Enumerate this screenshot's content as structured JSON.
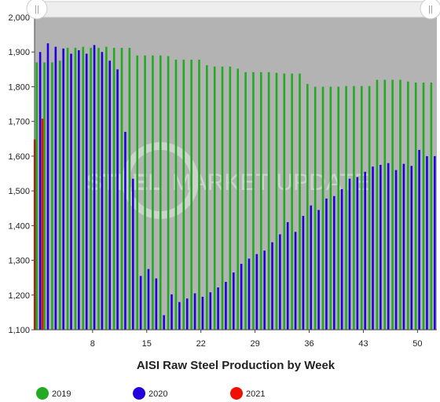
{
  "colors": {
    "plot_bg": "#b3b3b3",
    "y2019": "#22aa22",
    "y2020": "#2200dd",
    "y2021": "#ee1100"
  },
  "watermark": {
    "strong": "STEEL",
    "rest": "MARKET UPDATE"
  },
  "chart_data": {
    "type": "bar",
    "xlabel": "AISI Raw Steel Production by Week",
    "ylabel": "",
    "ylim": [
      1100,
      2000
    ],
    "yticks": [
      1100,
      1200,
      1300,
      1400,
      1500,
      1600,
      1700,
      1800,
      1900,
      2000
    ],
    "xticks": [
      8,
      15,
      22,
      29,
      36,
      43,
      50
    ],
    "xlim": [
      0.5,
      52.5
    ],
    "grid": false,
    "legend_position": "bottom",
    "series": [
      {
        "name": "2019",
        "color": "#22aa22",
        "x": [
          1,
          2,
          3,
          4,
          5,
          6,
          7,
          8,
          9,
          10,
          11,
          12,
          13,
          14,
          15,
          16,
          17,
          18,
          19,
          20,
          21,
          22,
          23,
          24,
          25,
          26,
          27,
          28,
          29,
          30,
          31,
          32,
          33,
          34,
          35,
          36,
          37,
          38,
          39,
          40,
          41,
          42,
          43,
          44,
          45,
          46,
          47,
          48,
          49,
          50,
          51,
          52
        ],
        "values": [
          1870,
          1870,
          1870,
          1875,
          1912,
          1912,
          1915,
          1912,
          1912,
          1915,
          1912,
          1912,
          1912,
          1890,
          1890,
          1890,
          1890,
          1888,
          1878,
          1878,
          1878,
          1878,
          1862,
          1858,
          1858,
          1858,
          1852,
          1842,
          1842,
          1842,
          1842,
          1840,
          1838,
          1838,
          1838,
          1808,
          1800,
          1800,
          1800,
          1800,
          1802,
          1802,
          1802,
          1802,
          1820,
          1820,
          1820,
          1820,
          1815,
          1812,
          1812,
          1812
        ]
      },
      {
        "name": "2020",
        "color": "#2200dd",
        "x": [
          1,
          2,
          3,
          4,
          5,
          6,
          7,
          8,
          9,
          10,
          11,
          12,
          13,
          14,
          15,
          16,
          17,
          18,
          19,
          20,
          21,
          22,
          23,
          24,
          25,
          26,
          27,
          28,
          29,
          30,
          31,
          32,
          33,
          34,
          35,
          36,
          37,
          38,
          39,
          40,
          41,
          42,
          43,
          44,
          45,
          46,
          47,
          48,
          49,
          50,
          51,
          52
        ],
        "values": [
          1900,
          1925,
          1915,
          1910,
          1895,
          1905,
          1895,
          1920,
          1900,
          1875,
          1850,
          1670,
          1535,
          1255,
          1275,
          1248,
          1142,
          1202,
          1180,
          1190,
          1205,
          1195,
          1208,
          1222,
          1238,
          1265,
          1290,
          1305,
          1318,
          1328,
          1352,
          1375,
          1410,
          1382,
          1428,
          1458,
          1445,
          1478,
          1485,
          1505,
          1535,
          1540,
          1555,
          1570,
          1575,
          1580,
          1560,
          1578,
          1572,
          1618,
          1600,
          1600
        ]
      },
      {
        "name": "2021",
        "color": "#ee1100",
        "x": [
          1,
          2
        ],
        "values": [
          1648,
          1708
        ]
      }
    ]
  }
}
